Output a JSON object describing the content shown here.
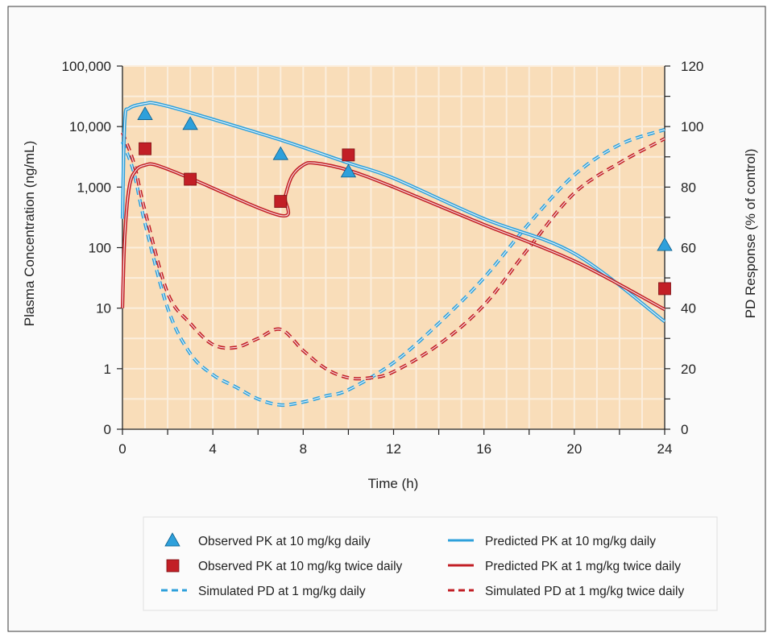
{
  "chart_data": {
    "type": "line",
    "xlabel": "Time (h)",
    "ylabel_left": "Plasma Concentration (ng/mL)",
    "ylabel_right": "PD Response (% of control)",
    "x_ticks": [
      0,
      4,
      8,
      12,
      16,
      20,
      24
    ],
    "xlim": [
      0,
      24
    ],
    "y_left_ticks": [
      "0",
      "1",
      "10",
      "100",
      "1,000",
      "10,000",
      "100,000"
    ],
    "y_left_scale": "log (bottom tick labelled 0)",
    "y_right_ticks": [
      0,
      20,
      40,
      60,
      80,
      100,
      120
    ],
    "ylim_right": [
      0,
      120
    ],
    "background_color": "#f9ddb9",
    "grid": true,
    "legend_position": "bottom",
    "colors": {
      "blue": "#2ea0db",
      "red": "#c21f26"
    },
    "series": [
      {
        "name": "Observed PK at 10 mg/kg daily",
        "kind": "markers",
        "marker": "triangle",
        "color": "#2ea0db",
        "axis": "left",
        "points": [
          [
            1,
            16000
          ],
          [
            3,
            11000
          ],
          [
            7,
            3500
          ],
          [
            10,
            1800
          ],
          [
            24,
            110
          ]
        ]
      },
      {
        "name": "Observed PK at 10 mg/kg twice daily",
        "kind": "markers",
        "marker": "square",
        "color": "#c21f26",
        "axis": "left",
        "points": [
          [
            1,
            4300
          ],
          [
            3,
            1350
          ],
          [
            7,
            580
          ],
          [
            10,
            3400
          ],
          [
            24,
            21
          ]
        ]
      },
      {
        "name": "Predicted PK at 10 mg/kg daily",
        "kind": "line",
        "style": "solid",
        "color": "#2ea0db",
        "axis": "left",
        "points": [
          [
            0,
            300
          ],
          [
            0.1,
            12000
          ],
          [
            0.3,
            20000
          ],
          [
            1,
            24000
          ],
          [
            1.5,
            24000
          ],
          [
            3,
            17000
          ],
          [
            7,
            6000
          ],
          [
            10,
            2500
          ],
          [
            12,
            1400
          ],
          [
            16,
            300
          ],
          [
            20,
            80
          ],
          [
            24,
            6
          ]
        ]
      },
      {
        "name": "Predicted PK at 1 mg/kg twice daily",
        "kind": "line",
        "style": "solid",
        "color": "#c21f26",
        "axis": "left",
        "points": [
          [
            0,
            10
          ],
          [
            0.1,
            150
          ],
          [
            0.3,
            1000
          ],
          [
            0.6,
            1900
          ],
          [
            1,
            2300
          ],
          [
            1.5,
            2300
          ],
          [
            3,
            1400
          ],
          [
            7,
            340
          ],
          [
            7.2,
            700
          ],
          [
            7.5,
            1500
          ],
          [
            8,
            2300
          ],
          [
            8.5,
            2500
          ],
          [
            10,
            1900
          ],
          [
            12,
            1000
          ],
          [
            16,
            240
          ],
          [
            20,
            60
          ],
          [
            24,
            9.5
          ]
        ]
      },
      {
        "name": "Simulated PD at 1 mg/kg daily",
        "kind": "line",
        "style": "dashed",
        "color": "#2ea0db",
        "axis": "right",
        "points": [
          [
            0,
            95
          ],
          [
            0.5,
            85
          ],
          [
            1,
            68
          ],
          [
            2,
            40
          ],
          [
            3,
            25
          ],
          [
            4,
            18
          ],
          [
            5,
            14
          ],
          [
            6,
            10
          ],
          [
            7,
            8
          ],
          [
            8,
            9
          ],
          [
            9,
            11
          ],
          [
            10,
            13
          ],
          [
            12,
            22
          ],
          [
            14,
            35
          ],
          [
            16,
            50
          ],
          [
            18,
            68
          ],
          [
            20,
            84
          ],
          [
            22,
            94
          ],
          [
            24,
            99
          ]
        ]
      },
      {
        "name": "Simulated PD at 1 mg/kg twice daily",
        "kind": "line",
        "style": "dashed",
        "color": "#c21f26",
        "axis": "right",
        "points": [
          [
            0,
            98
          ],
          [
            0.5,
            88
          ],
          [
            1,
            72
          ],
          [
            2,
            45
          ],
          [
            3,
            35
          ],
          [
            4,
            28
          ],
          [
            5,
            27
          ],
          [
            6,
            30
          ],
          [
            7,
            33
          ],
          [
            8,
            26
          ],
          [
            9,
            20
          ],
          [
            10,
            17
          ],
          [
            11,
            17
          ],
          [
            12,
            19
          ],
          [
            14,
            28
          ],
          [
            16,
            41
          ],
          [
            18,
            60
          ],
          [
            20,
            78
          ],
          [
            22,
            88
          ],
          [
            24,
            96
          ]
        ]
      }
    ],
    "legend": [
      {
        "label": "Observed PK at 10 mg/kg daily",
        "swatch": "triangle",
        "color": "#2ea0db"
      },
      {
        "label": "Predicted PK at 10 mg/kg daily",
        "swatch": "solid",
        "color": "#2ea0db"
      },
      {
        "label": "Observed PK at 10 mg/kg twice daily",
        "swatch": "square",
        "color": "#c21f26"
      },
      {
        "label": "Predicted PK at 1 mg/kg twice daily",
        "swatch": "solid",
        "color": "#c21f26"
      },
      {
        "label": "Simulated PD at 1 mg/kg daily",
        "swatch": "dashed",
        "color": "#2ea0db"
      },
      {
        "label": "Simulated PD at 1 mg/kg twice daily",
        "swatch": "dashed",
        "color": "#c21f26"
      }
    ]
  }
}
